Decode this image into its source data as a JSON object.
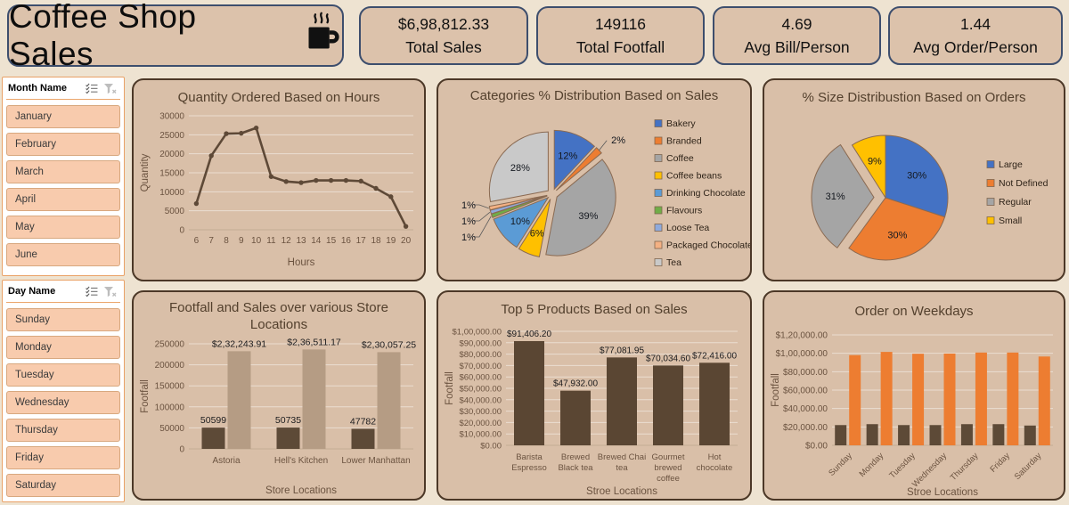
{
  "header": {
    "title": "Coffee Shop Sales",
    "icon": "coffee-mug-icon"
  },
  "kpis": [
    {
      "value": "$6,98,812.33",
      "label": "Total Sales"
    },
    {
      "value": "149116",
      "label": "Total Footfall"
    },
    {
      "value": "4.69",
      "label": "Avg Bill/Person"
    },
    {
      "value": "1.44",
      "label": "Avg Order/Person"
    }
  ],
  "slicers": [
    {
      "title": "Month Name",
      "items": [
        "January",
        "February",
        "March",
        "April",
        "May",
        "June"
      ]
    },
    {
      "title": "Day Name",
      "items": [
        "Sunday",
        "Monday",
        "Tuesday",
        "Wednesday",
        "Thursday",
        "Friday",
        "Saturday"
      ]
    }
  ],
  "colors": {
    "page_bg": "#eee3d1",
    "panel_fill": "#d9bfa8",
    "panel_border": "#4c3827",
    "kpi_border": "#3d4e6d",
    "accent_orange": "#ED7D31",
    "dark_brown": "#5d4a37",
    "tan_bar": "#b59c84",
    "slicer_item": "#f8cbad"
  },
  "chart_data": [
    {
      "id": "hours-line",
      "type": "line",
      "title": "Quantity Ordered Based on Hours",
      "xlabel": "Hours",
      "ylabel": "Quantity",
      "x": [
        6,
        7,
        8,
        9,
        10,
        11,
        12,
        13,
        14,
        15,
        16,
        17,
        18,
        19,
        20
      ],
      "values": [
        6900,
        19500,
        25300,
        25400,
        26800,
        14000,
        12700,
        12400,
        13000,
        13000,
        13000,
        12800,
        10900,
        8700,
        900
      ],
      "ylim": [
        0,
        30000
      ],
      "yticks": [
        "0",
        "5000",
        "10000",
        "15000",
        "20000",
        "25000",
        "30000"
      ],
      "line_color": "#5e4937",
      "grid": true
    },
    {
      "id": "categories-pie",
      "type": "pie",
      "title": "Categories % Distribution Based on Sales",
      "legend_position": "right",
      "slices": [
        {
          "label": "Bakery",
          "value": 12,
          "pct_label": "12%",
          "color": "#4472C4"
        },
        {
          "label": "Branded",
          "value": 2,
          "pct_label": "2%",
          "color": "#ED7D31"
        },
        {
          "label": "Coffee",
          "value": 39,
          "pct_label": "39%",
          "color": "#A5A5A5"
        },
        {
          "label": "Coffee beans",
          "value": 6,
          "pct_label": "6%",
          "color": "#FFC000"
        },
        {
          "label": "Drinking Chocolate",
          "value": 10,
          "pct_label": "10%",
          "color": "#5B9BD5"
        },
        {
          "label": "Flavours",
          "value": 1,
          "pct_label": "1%",
          "color": "#70AD47"
        },
        {
          "label": "Loose Tea",
          "value": 1,
          "pct_label": "1%",
          "color": "#8FAADC"
        },
        {
          "label": "Packaged Chocolate",
          "value": 1,
          "pct_label": "1%",
          "color": "#F4B183"
        },
        {
          "label": "Tea",
          "value": 28,
          "pct_label": "28%",
          "color": "#C9C9C9"
        }
      ]
    },
    {
      "id": "size-pie",
      "type": "pie",
      "title": "% Size Distribustion Based on Orders",
      "legend_position": "right",
      "slices": [
        {
          "label": "Large",
          "value": 30,
          "pct_label": "30%",
          "color": "#4472C4"
        },
        {
          "label": "Not Defined",
          "value": 30,
          "pct_label": "30%",
          "color": "#ED7D31"
        },
        {
          "label": "Regular",
          "value": 31,
          "pct_label": "31%",
          "color": "#A5A5A5",
          "exploded": true
        },
        {
          "label": "Small",
          "value": 9,
          "pct_label": "9%",
          "color": "#FFC000"
        }
      ]
    },
    {
      "id": "footfall-bar",
      "type": "bar",
      "title": "Footfall and Sales over various Store Locations",
      "title_lines": [
        "Footfall and Sales over various Store",
        "Locations"
      ],
      "xlabel": "Store Locations",
      "ylabel": "Footfall",
      "categories": [
        "Astoria",
        "Hell's Kitchen",
        "Lower Manhattan"
      ],
      "series": [
        {
          "name": "Footfall",
          "color": "#5d4a37",
          "values": [
            50599,
            50735,
            47782
          ],
          "labels": [
            "50599",
            "50735",
            "47782"
          ]
        },
        {
          "name": "Sales",
          "color": "#b59c84",
          "values": [
            232243.91,
            236511.17,
            230057.25
          ],
          "labels": [
            "$2,32,243.91",
            "$2,36,511.17",
            "$2,30,057.25"
          ]
        }
      ],
      "ylim": [
        0,
        250000
      ],
      "yticks": [
        "0",
        "50000",
        "100000",
        "150000",
        "200000",
        "250000"
      ],
      "grid": true
    },
    {
      "id": "top5-bar",
      "type": "bar",
      "title": "Top 5 Products Based on Sales",
      "xlabel": "Stroe Locations",
      "ylabel": "Footfall",
      "categories": [
        "Barista Espresso",
        "Brewed Black tea",
        "Brewed Chai tea",
        "Gourmet brewed coffee",
        "Hot chocolate"
      ],
      "category_label_lines": [
        [
          "Barista",
          "Espresso"
        ],
        [
          "Brewed",
          "Black tea"
        ],
        [
          "Brewed Chai",
          "tea"
        ],
        [
          "Gourmet",
          "brewed",
          "coffee"
        ],
        [
          "Hot",
          "chocolate"
        ]
      ],
      "series": [
        {
          "name": "Sales",
          "color": "#5a4633",
          "values": [
            91406.2,
            47932.0,
            77081.95,
            70034.6,
            72416.0
          ],
          "labels": [
            "$91,406.20",
            "$47,932.00",
            "$77,081.95",
            "$70,034.60",
            "$72,416.00"
          ]
        }
      ],
      "ylim": [
        0,
        100000
      ],
      "yticks": [
        "$0.00",
        "$10,000.00",
        "$20,000.00",
        "$30,000.00",
        "$40,000.00",
        "$50,000.00",
        "$60,000.00",
        "$70,000.00",
        "$80,000.00",
        "$90,000.00",
        "$1,00,000.00"
      ],
      "grid": true
    },
    {
      "id": "weekday-bar",
      "type": "bar",
      "title": "Order on Weekdays",
      "xlabel": "Stroe Locations",
      "ylabel": "Footfall",
      "rotate_labels": true,
      "categories": [
        "Sunday",
        "Monday",
        "Tuesday",
        "Wednesday",
        "Thursday",
        "Friday",
        "Saturday"
      ],
      "series": [
        {
          "name": "Footfall",
          "color": "#5d4a37",
          "values": [
            22000,
            23000,
            22000,
            22000,
            23000,
            23000,
            21500
          ]
        },
        {
          "name": "Order",
          "color": "#ED7D31",
          "values": [
            98000,
            101500,
            99500,
            99700,
            100800,
            100800,
            96500
          ]
        }
      ],
      "ylim": [
        0,
        120000
      ],
      "yticks": [
        "$0.00",
        "$20,000.00",
        "$40,000.00",
        "$60,000.00",
        "$80,000.00",
        "$1,00,000.00",
        "$1,20,000.00"
      ],
      "grid": true
    }
  ]
}
